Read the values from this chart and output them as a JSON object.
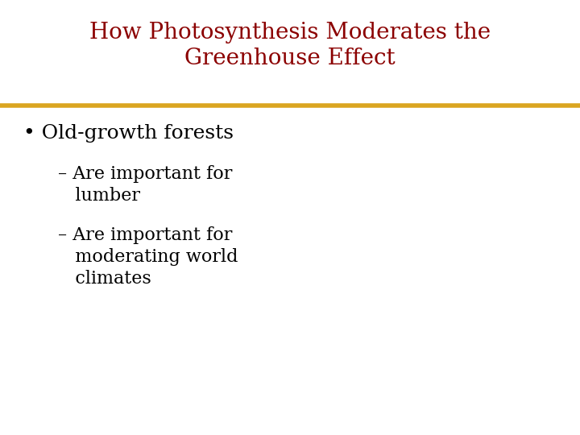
{
  "title_line1": "How Photosynthesis Moderates the",
  "title_line2": "Greenhouse Effect",
  "title_color": "#8B0000",
  "title_fontsize": 20,
  "separator_color": "#DAA520",
  "separator_linewidth": 4,
  "background_color": "#FFFFFF",
  "bullet_text": "Old-growth forests",
  "bullet_fontsize": 18,
  "bullet_color": "#000000",
  "sub_bullet1_line1": "– Are important for",
  "sub_bullet1_line2": "   lumber",
  "sub_bullet2_line1": "– Are important for",
  "sub_bullet2_line2": "   moderating world",
  "sub_bullet2_line3": "   climates",
  "sub_bullet_fontsize": 16,
  "sub_bullet_color": "#000000"
}
